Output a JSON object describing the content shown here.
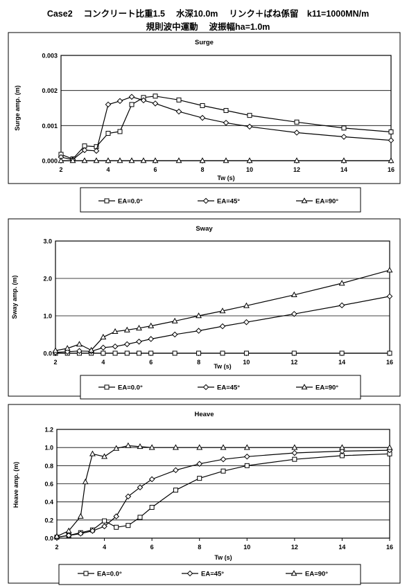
{
  "header": {
    "line1": "Case2　 コンクリート比重1.5　 水深10.0m　 リンク＋ばね係留　k11=1000MN/m",
    "line2": "規則波中運動　 波振幅ha=1.0m"
  },
  "chart_data": [
    {
      "type": "line",
      "title": "Surge",
      "xlabel": "Tw (s)",
      "ylabel": "Surge amp. (m)",
      "xlim": [
        2,
        16
      ],
      "ylim": [
        0,
        0.003
      ],
      "xticks": [
        "2",
        "4",
        "6",
        "8",
        "10",
        "12",
        "14",
        "16"
      ],
      "yticks": [
        "0.000",
        "0.001",
        "0.002",
        "0.003"
      ],
      "grid": "horizontal",
      "legend": "bottom",
      "series": [
        {
          "name": "EA=0.0°",
          "marker": "square",
          "x": [
            2,
            2.5,
            3,
            3.5,
            4,
            4.5,
            5,
            5.5,
            6,
            7,
            8,
            9,
            10,
            12,
            14,
            16
          ],
          "y": [
            0.00018,
            5e-05,
            0.00042,
            0.0004,
            0.00078,
            0.00083,
            0.0016,
            0.0018,
            0.00184,
            0.00173,
            0.00157,
            0.00143,
            0.00129,
            0.0011,
            0.00093,
            0.00082
          ]
        },
        {
          "name": "EA=45°",
          "marker": "diamond",
          "x": [
            2,
            2.5,
            3,
            3.5,
            4,
            4.5,
            5,
            5.5,
            6,
            7,
            8,
            9,
            10,
            12,
            14,
            16
          ],
          "y": [
            0.0001,
            3e-05,
            0.0003,
            0.00028,
            0.0016,
            0.0017,
            0.00182,
            0.00172,
            0.00163,
            0.0014,
            0.00122,
            0.00108,
            0.00097,
            0.0008,
            0.00068,
            0.00058
          ]
        },
        {
          "name": "EA=90°",
          "marker": "triangle",
          "x": [
            2,
            2.5,
            3,
            3.5,
            4,
            4.5,
            5,
            5.5,
            6,
            7,
            8,
            9,
            10,
            12,
            14,
            16
          ],
          "y": [
            0,
            0,
            0,
            0,
            0,
            0,
            0,
            0,
            0,
            0,
            0,
            0,
            0,
            0,
            0,
            0
          ]
        }
      ]
    },
    {
      "type": "line",
      "title": "Sway",
      "xlabel": "Tw (s)",
      "ylabel": "Sway amp. (m)",
      "xlim": [
        2,
        16
      ],
      "ylim": [
        0,
        3
      ],
      "xticks": [
        "2",
        "4",
        "6",
        "8",
        "10",
        "12",
        "14",
        "16"
      ],
      "yticks": [
        "0.0",
        "1.0",
        "2.0",
        "3.0"
      ],
      "grid": "horizontal",
      "legend": "bottom",
      "series": [
        {
          "name": "EA=0.0°",
          "marker": "square",
          "x": [
            2,
            2.5,
            3,
            3.5,
            4,
            4.5,
            5,
            5.5,
            6,
            7,
            8,
            9,
            10,
            12,
            14,
            16
          ],
          "y": [
            0,
            0,
            0,
            0,
            0,
            0,
            0,
            0,
            0,
            0,
            0,
            0,
            0,
            0,
            0,
            0
          ]
        },
        {
          "name": "EA=45°",
          "marker": "diamond",
          "x": [
            2,
            2.5,
            3,
            3.5,
            4,
            4.5,
            5,
            5.5,
            6,
            7,
            8,
            9,
            10,
            12,
            14,
            16
          ],
          "y": [
            0.02,
            0.04,
            0.06,
            0.05,
            0.15,
            0.18,
            0.24,
            0.31,
            0.38,
            0.5,
            0.6,
            0.72,
            0.83,
            1.05,
            1.28,
            1.52
          ]
        },
        {
          "name": "EA=90°",
          "marker": "triangle",
          "x": [
            2,
            2.5,
            3,
            3.5,
            4,
            4.5,
            5,
            5.5,
            6,
            7,
            8,
            9,
            10,
            12,
            14,
            16
          ],
          "y": [
            0.07,
            0.13,
            0.24,
            0.08,
            0.43,
            0.58,
            0.62,
            0.67,
            0.73,
            0.86,
            1.0,
            1.13,
            1.27,
            1.56,
            1.87,
            2.22
          ]
        }
      ]
    },
    {
      "type": "line",
      "title": "Heave",
      "xlabel": "Tw (s)",
      "ylabel": "Heave amp. (m)",
      "xlim": [
        2,
        16
      ],
      "ylim": [
        0,
        1.2
      ],
      "xticks": [
        "2",
        "4",
        "6",
        "8",
        "10",
        "12",
        "14",
        "16"
      ],
      "yticks": [
        "0.0",
        "0.2",
        "0.4",
        "0.6",
        "0.8",
        "1.0",
        "1.2"
      ],
      "grid": "horizontal",
      "legend": "bottom",
      "series": [
        {
          "name": "EA=0.0°",
          "marker": "square",
          "x": [
            2,
            2.5,
            3,
            3.5,
            4,
            4.5,
            5,
            5.5,
            6,
            7,
            8,
            9,
            10,
            12,
            14,
            16
          ],
          "y": [
            0.01,
            0.03,
            0.06,
            0.09,
            0.19,
            0.12,
            0.14,
            0.23,
            0.34,
            0.53,
            0.66,
            0.74,
            0.8,
            0.87,
            0.91,
            0.93
          ]
        },
        {
          "name": "EA=45°",
          "marker": "diamond",
          "x": [
            2,
            2.5,
            3,
            3.5,
            4,
            4.5,
            5,
            5.5,
            6,
            7,
            8,
            9,
            10,
            12,
            14,
            16
          ],
          "y": [
            0.01,
            0.03,
            0.05,
            0.08,
            0.13,
            0.24,
            0.46,
            0.56,
            0.65,
            0.75,
            0.82,
            0.87,
            0.9,
            0.94,
            0.96,
            0.97
          ]
        },
        {
          "name": "EA=90°",
          "marker": "triangle",
          "x": [
            2,
            2.5,
            3,
            3.2,
            3.5,
            4,
            4.5,
            5,
            5.5,
            6,
            7,
            8,
            9,
            10,
            12,
            14,
            16
          ],
          "y": [
            0.02,
            0.08,
            0.24,
            0.62,
            0.93,
            0.9,
            0.99,
            1.02,
            1.01,
            1.0,
            1.0,
            1.0,
            1.0,
            1.0,
            1.0,
            1.0,
            1.0
          ]
        }
      ]
    }
  ]
}
